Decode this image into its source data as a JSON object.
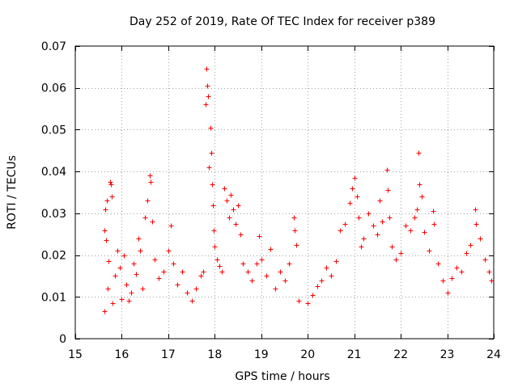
{
  "chart_data": {
    "type": "scatter",
    "title": "Day 252 of 2019, Rate Of TEC Index for receiver p389",
    "xlabel": "GPS time / hours",
    "ylabel": "ROTI / TECUs",
    "xlim": [
      15,
      24
    ],
    "ylim": [
      0,
      0.07
    ],
    "x_ticks": [
      "15",
      "16",
      "17",
      "18",
      "19",
      "20",
      "21",
      "22",
      "23",
      "24"
    ],
    "y_ticks": [
      "0",
      "0.01",
      "0.02",
      "0.03",
      "0.04",
      "0.05",
      "0.06",
      "0.07"
    ],
    "grid": true,
    "marker": "+",
    "series": [
      {
        "name": "ROTI",
        "color": "#ff0000",
        "points": [
          [
            15.62,
            0.0065
          ],
          [
            15.62,
            0.026
          ],
          [
            15.64,
            0.031
          ],
          [
            15.66,
            0.0235
          ],
          [
            15.68,
            0.033
          ],
          [
            15.7,
            0.012
          ],
          [
            15.72,
            0.0185
          ],
          [
            15.74,
            0.0375
          ],
          [
            15.76,
            0.037
          ],
          [
            15.78,
            0.034
          ],
          [
            15.8,
            0.0085
          ],
          [
            15.85,
            0.015
          ],
          [
            15.9,
            0.021
          ],
          [
            15.95,
            0.017
          ],
          [
            16.0,
            0.0095
          ],
          [
            16.05,
            0.02
          ],
          [
            16.1,
            0.013
          ],
          [
            16.15,
            0.009
          ],
          [
            16.2,
            0.011
          ],
          [
            16.25,
            0.018
          ],
          [
            16.3,
            0.0155
          ],
          [
            16.35,
            0.024
          ],
          [
            16.4,
            0.021
          ],
          [
            16.45,
            0.012
          ],
          [
            16.5,
            0.029
          ],
          [
            16.55,
            0.033
          ],
          [
            16.6,
            0.039
          ],
          [
            16.62,
            0.0375
          ],
          [
            16.65,
            0.028
          ],
          [
            16.7,
            0.019
          ],
          [
            16.8,
            0.0145
          ],
          [
            16.9,
            0.016
          ],
          [
            17.0,
            0.021
          ],
          [
            17.05,
            0.027
          ],
          [
            17.1,
            0.018
          ],
          [
            17.2,
            0.013
          ],
          [
            17.3,
            0.016
          ],
          [
            17.4,
            0.011
          ],
          [
            17.5,
            0.009
          ],
          [
            17.6,
            0.012
          ],
          [
            17.7,
            0.015
          ],
          [
            17.75,
            0.016
          ],
          [
            17.8,
            0.056
          ],
          [
            17.82,
            0.0645
          ],
          [
            17.84,
            0.0605
          ],
          [
            17.86,
            0.058
          ],
          [
            17.88,
            0.041
          ],
          [
            17.9,
            0.0505
          ],
          [
            17.92,
            0.0445
          ],
          [
            17.94,
            0.037
          ],
          [
            17.96,
            0.032
          ],
          [
            17.98,
            0.026
          ],
          [
            18.0,
            0.022
          ],
          [
            18.05,
            0.019
          ],
          [
            18.1,
            0.0175
          ],
          [
            18.15,
            0.016
          ],
          [
            18.2,
            0.036
          ],
          [
            18.25,
            0.033
          ],
          [
            18.3,
            0.029
          ],
          [
            18.35,
            0.0345
          ],
          [
            18.4,
            0.031
          ],
          [
            18.45,
            0.0275
          ],
          [
            18.5,
            0.032
          ],
          [
            18.55,
            0.025
          ],
          [
            18.6,
            0.018
          ],
          [
            18.7,
            0.016
          ],
          [
            18.8,
            0.014
          ],
          [
            18.9,
            0.018
          ],
          [
            18.95,
            0.0245
          ],
          [
            19.0,
            0.019
          ],
          [
            19.1,
            0.015
          ],
          [
            19.2,
            0.0215
          ],
          [
            19.3,
            0.012
          ],
          [
            19.4,
            0.016
          ],
          [
            19.5,
            0.014
          ],
          [
            19.6,
            0.018
          ],
          [
            19.7,
            0.029
          ],
          [
            19.72,
            0.026
          ],
          [
            19.75,
            0.0225
          ],
          [
            19.8,
            0.009
          ],
          [
            20.0,
            0.0085
          ],
          [
            20.1,
            0.0105
          ],
          [
            20.2,
            0.0125
          ],
          [
            20.3,
            0.014
          ],
          [
            20.4,
            0.017
          ],
          [
            20.5,
            0.015
          ],
          [
            20.6,
            0.0185
          ],
          [
            20.7,
            0.026
          ],
          [
            20.8,
            0.0275
          ],
          [
            20.9,
            0.0325
          ],
          [
            20.95,
            0.036
          ],
          [
            21.0,
            0.0385
          ],
          [
            21.05,
            0.034
          ],
          [
            21.1,
            0.029
          ],
          [
            21.15,
            0.022
          ],
          [
            21.2,
            0.024
          ],
          [
            21.3,
            0.03
          ],
          [
            21.4,
            0.027
          ],
          [
            21.5,
            0.025
          ],
          [
            21.55,
            0.033
          ],
          [
            21.6,
            0.028
          ],
          [
            21.7,
            0.0405
          ],
          [
            21.72,
            0.0355
          ],
          [
            21.75,
            0.029
          ],
          [
            21.8,
            0.022
          ],
          [
            21.9,
            0.019
          ],
          [
            22.0,
            0.0205
          ],
          [
            22.1,
            0.027
          ],
          [
            22.2,
            0.026
          ],
          [
            22.3,
            0.029
          ],
          [
            22.35,
            0.031
          ],
          [
            22.38,
            0.0445
          ],
          [
            22.4,
            0.037
          ],
          [
            22.45,
            0.034
          ],
          [
            22.5,
            0.0255
          ],
          [
            22.6,
            0.021
          ],
          [
            22.7,
            0.0305
          ],
          [
            22.72,
            0.0275
          ],
          [
            22.8,
            0.018
          ],
          [
            22.9,
            0.014
          ],
          [
            23.0,
            0.011
          ],
          [
            23.1,
            0.0145
          ],
          [
            23.2,
            0.017
          ],
          [
            23.3,
            0.016
          ],
          [
            23.4,
            0.0205
          ],
          [
            23.5,
            0.0225
          ],
          [
            23.6,
            0.031
          ],
          [
            23.62,
            0.0275
          ],
          [
            23.7,
            0.024
          ],
          [
            23.8,
            0.019
          ],
          [
            23.9,
            0.016
          ],
          [
            23.95,
            0.014
          ]
        ]
      }
    ]
  }
}
